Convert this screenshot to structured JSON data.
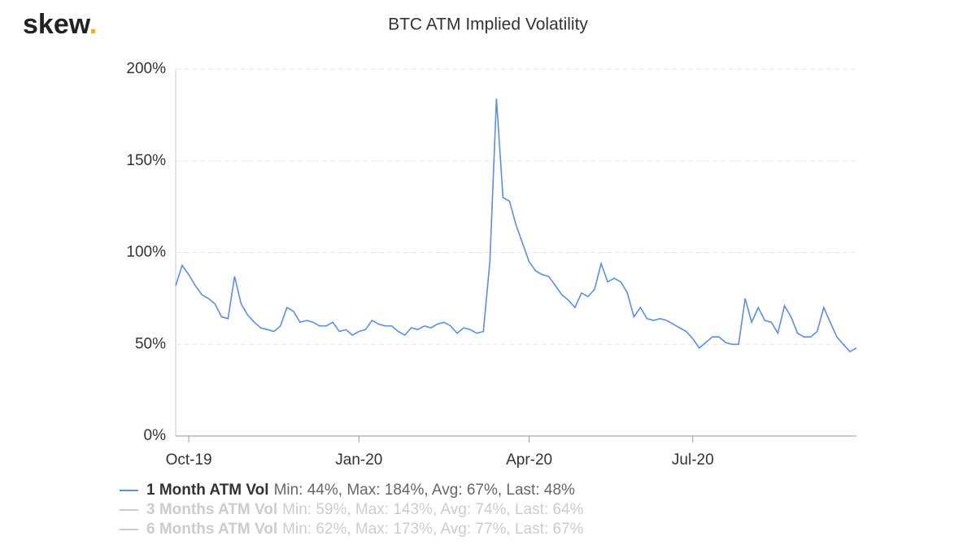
{
  "chart_data": {
    "type": "line",
    "logo": {
      "text": "skew",
      "dot": "."
    },
    "title": "BTC ATM Implied Volatility",
    "categories": [
      null,
      null,
      "Oct-19",
      null,
      null,
      null,
      null,
      null,
      null,
      null,
      null,
      null,
      null,
      null,
      null,
      null,
      null,
      null,
      null,
      null,
      null,
      null,
      null,
      null,
      null,
      null,
      null,
      null,
      "Jan-20",
      null,
      null,
      null,
      null,
      null,
      null,
      null,
      null,
      null,
      null,
      null,
      null,
      null,
      null,
      null,
      null,
      null,
      null,
      null,
      null,
      null,
      null,
      null,
      null,
      null,
      "Apr-20",
      null,
      null,
      null,
      null,
      null,
      null,
      null,
      null,
      null,
      null,
      null,
      null,
      null,
      null,
      null,
      null,
      null,
      null,
      null,
      null,
      null,
      null,
      null,
      null,
      "Jul-20",
      null,
      null,
      null,
      null,
      null,
      null,
      null,
      null,
      null,
      null,
      null,
      null,
      null,
      null,
      null,
      null,
      null,
      null,
      null,
      null,
      null,
      null,
      null,
      null,
      null
    ],
    "series": [
      {
        "name": "1 Month ATM Vol",
        "stats": "Min: 44%, Max: 184%, Avg: 67%, Last: 48%",
        "color": "#5b8ee6",
        "values": [
          82,
          93,
          88,
          82,
          77,
          75,
          72,
          65,
          64,
          87,
          72,
          66,
          62,
          59,
          58,
          57,
          60,
          70,
          68,
          62,
          63,
          62,
          60,
          60,
          62,
          57,
          58,
          55,
          57,
          58,
          63,
          61,
          60,
          60,
          57,
          55,
          59,
          58,
          60,
          59,
          61,
          62,
          60,
          56,
          59,
          58,
          56,
          57,
          95,
          184,
          130,
          128,
          115,
          105,
          95,
          90,
          88,
          87,
          82,
          77,
          74,
          70,
          78,
          76,
          80,
          94,
          84,
          86,
          84,
          78,
          65,
          70,
          64,
          63,
          64,
          63,
          61,
          59,
          57,
          53,
          48,
          51,
          54,
          54,
          51,
          50,
          50,
          75,
          62,
          70,
          63,
          62,
          56,
          71,
          65,
          56,
          54,
          54,
          57,
          70,
          62,
          54,
          50,
          46,
          48
        ]
      },
      {
        "name": "3 Months ATM Vol",
        "stats": "Min: 59%, Max: 143%, Avg: 74%, Last: 64%",
        "color": "#cccccc",
        "hidden": true
      },
      {
        "name": "6 Months ATM Vol",
        "stats": "Min: 62%, Max: 173%, Avg: 77%, Last: 67%",
        "color": "#cccccc",
        "hidden": true
      }
    ],
    "ylim": [
      0,
      200
    ],
    "yticks": [
      {
        "value": 0,
        "label": "0%"
      },
      {
        "value": 50,
        "label": "50%"
      },
      {
        "value": 100,
        "label": "100%"
      },
      {
        "value": 150,
        "label": "150%"
      },
      {
        "value": 200,
        "label": "200%"
      }
    ],
    "grid": true
  }
}
